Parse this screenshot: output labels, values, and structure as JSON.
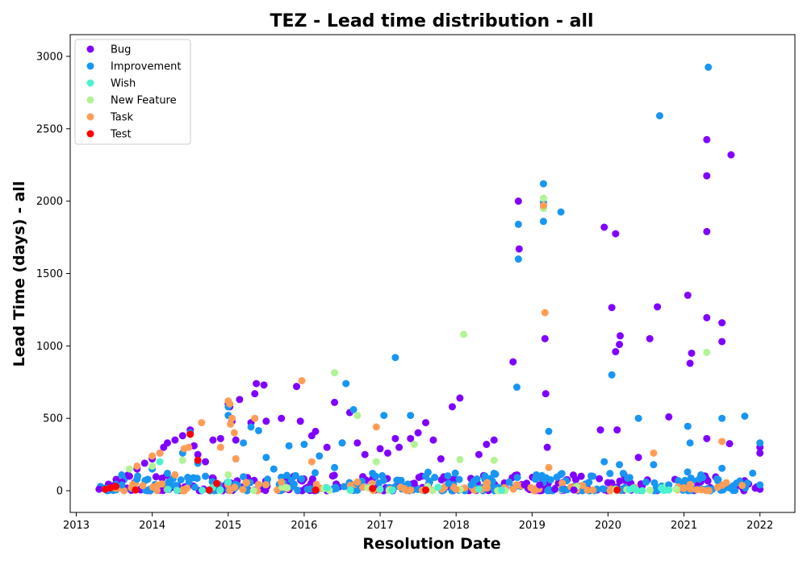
{
  "chart_data": {
    "type": "scatter",
    "title": "TEZ - Lead time distribution - all",
    "xlabel": "Resolution Date",
    "ylabel": "Lead Time (days) - all",
    "xlim": [
      2012.92,
      2022.46
    ],
    "ylim": [
      -150,
      3150
    ],
    "x_ticks": [
      2013,
      2014,
      2015,
      2016,
      2017,
      2018,
      2019,
      2020,
      2021,
      2022
    ],
    "y_ticks": [
      0,
      500,
      1000,
      1500,
      2000,
      2500,
      3000
    ],
    "legend_position": "top-left",
    "grid": false,
    "series": [
      {
        "name": "Bug",
        "color": "#8000ff",
        "points": [
          [
            2013.3,
            10
          ],
          [
            2013.5,
            30
          ],
          [
            2013.6,
            60
          ],
          [
            2013.7,
            100
          ],
          [
            2013.8,
            150
          ],
          [
            2013.9,
            190
          ],
          [
            2014.0,
            220
          ],
          [
            2014.1,
            260
          ],
          [
            2014.15,
            300
          ],
          [
            2014.2,
            330
          ],
          [
            2014.3,
            350
          ],
          [
            2014.4,
            380
          ],
          [
            2014.5,
            420
          ],
          [
            2014.55,
            310
          ],
          [
            2014.6,
            250
          ],
          [
            2014.7,
            200
          ],
          [
            2014.8,
            350
          ],
          [
            2014.9,
            360
          ],
          [
            2015.0,
            600
          ],
          [
            2015.02,
            580
          ],
          [
            2015.05,
            480
          ],
          [
            2015.1,
            350
          ],
          [
            2015.15,
            630
          ],
          [
            2015.3,
            470
          ],
          [
            2015.35,
            670
          ],
          [
            2015.37,
            740
          ],
          [
            2015.47,
            730
          ],
          [
            2015.5,
            480
          ],
          [
            2015.7,
            500
          ],
          [
            2015.9,
            720
          ],
          [
            2015.95,
            480
          ],
          [
            2016.1,
            380
          ],
          [
            2016.15,
            410
          ],
          [
            2016.3,
            300
          ],
          [
            2016.4,
            610
          ],
          [
            2016.5,
            330
          ],
          [
            2016.6,
            540
          ],
          [
            2016.7,
            330
          ],
          [
            2016.8,
            250
          ],
          [
            2017.0,
            290
          ],
          [
            2017.1,
            260
          ],
          [
            2017.2,
            360
          ],
          [
            2017.25,
            300
          ],
          [
            2017.4,
            360
          ],
          [
            2017.5,
            400
          ],
          [
            2017.6,
            470
          ],
          [
            2017.7,
            350
          ],
          [
            2017.8,
            220
          ],
          [
            2017.95,
            580
          ],
          [
            2018.05,
            640
          ],
          [
            2018.3,
            250
          ],
          [
            2018.4,
            320
          ],
          [
            2018.5,
            350
          ],
          [
            2018.75,
            890
          ],
          [
            2018.82,
            2000
          ],
          [
            2018.83,
            1670
          ],
          [
            2018.9,
            40
          ],
          [
            2019.1,
            40
          ],
          [
            2019.17,
            1050
          ],
          [
            2019.18,
            670
          ],
          [
            2019.2,
            300
          ],
          [
            2019.3,
            10
          ],
          [
            2019.55,
            5
          ],
          [
            2019.9,
            420
          ],
          [
            2019.95,
            1820
          ],
          [
            2020.05,
            1265
          ],
          [
            2020.1,
            1775
          ],
          [
            2020.1,
            960
          ],
          [
            2020.12,
            420
          ],
          [
            2020.15,
            1010
          ],
          [
            2020.16,
            1070
          ],
          [
            2020.4,
            230
          ],
          [
            2020.55,
            1050
          ],
          [
            2020.65,
            1270
          ],
          [
            2020.8,
            510
          ],
          [
            2021.05,
            1350
          ],
          [
            2021.08,
            880
          ],
          [
            2021.1,
            950
          ],
          [
            2021.3,
            2425
          ],
          [
            2021.3,
            2175
          ],
          [
            2021.3,
            1790
          ],
          [
            2021.3,
            1195
          ],
          [
            2021.3,
            360
          ],
          [
            2021.5,
            1160
          ],
          [
            2021.5,
            1030
          ],
          [
            2021.6,
            325
          ],
          [
            2021.62,
            2320
          ],
          [
            2022.0,
            300
          ],
          [
            2022.0,
            260
          ],
          [
            2022.0,
            10
          ]
        ]
      },
      {
        "name": "Improvement",
        "color": "#1996f3",
        "points": [
          [
            2013.4,
            15
          ],
          [
            2013.6,
            40
          ],
          [
            2013.8,
            80
          ],
          [
            2014.0,
            150
          ],
          [
            2014.2,
            120
          ],
          [
            2014.4,
            260
          ],
          [
            2014.5,
            400
          ],
          [
            2014.6,
            190
          ],
          [
            2014.7,
            100
          ],
          [
            2015.0,
            580
          ],
          [
            2015.0,
            520
          ],
          [
            2015.1,
            220
          ],
          [
            2015.2,
            330
          ],
          [
            2015.3,
            440
          ],
          [
            2015.4,
            415
          ],
          [
            2015.5,
            230
          ],
          [
            2015.6,
            150
          ],
          [
            2015.8,
            310
          ],
          [
            2016.0,
            320
          ],
          [
            2016.2,
            240
          ],
          [
            2016.4,
            160
          ],
          [
            2016.5,
            330
          ],
          [
            2016.55,
            740
          ],
          [
            2016.65,
            560
          ],
          [
            2016.7,
            50
          ],
          [
            2016.9,
            120
          ],
          [
            2017.05,
            520
          ],
          [
            2017.2,
            920
          ],
          [
            2017.4,
            520
          ],
          [
            2017.6,
            100
          ],
          [
            2017.9,
            50
          ],
          [
            2018.2,
            40
          ],
          [
            2018.5,
            120
          ],
          [
            2018.7,
            60
          ],
          [
            2018.8,
            715
          ],
          [
            2018.82,
            1840
          ],
          [
            2018.82,
            1600
          ],
          [
            2019.15,
            2120
          ],
          [
            2019.15,
            1990
          ],
          [
            2019.15,
            1860
          ],
          [
            2019.15,
            1960
          ],
          [
            2019.22,
            410
          ],
          [
            2019.38,
            1925
          ],
          [
            2019.4,
            10
          ],
          [
            2019.8,
            100
          ],
          [
            2019.95,
            200
          ],
          [
            2020.05,
            800
          ],
          [
            2020.15,
            180
          ],
          [
            2020.2,
            120
          ],
          [
            2020.4,
            500
          ],
          [
            2020.5,
            60
          ],
          [
            2020.6,
            180
          ],
          [
            2020.68,
            2590
          ],
          [
            2020.8,
            40
          ],
          [
            2021.05,
            445
          ],
          [
            2021.08,
            330
          ],
          [
            2021.2,
            80
          ],
          [
            2021.32,
            2925
          ],
          [
            2021.5,
            500
          ],
          [
            2021.5,
            155
          ],
          [
            2021.8,
            515
          ],
          [
            2022.0,
            330
          ],
          [
            2022.0,
            40
          ]
        ]
      },
      {
        "name": "Wish",
        "color": "#4cf2ce",
        "points": [
          [
            2014.1,
            200
          ],
          [
            2015.0,
            60
          ],
          [
            2016.3,
            20
          ],
          [
            2017.0,
            10
          ],
          [
            2018.3,
            10
          ],
          [
            2020.8,
            5
          ],
          [
            2020.9,
            10
          ]
        ]
      },
      {
        "name": "New Feature",
        "color": "#b2f396",
        "points": [
          [
            2013.7,
            150
          ],
          [
            2014.0,
            170
          ],
          [
            2014.4,
            210
          ],
          [
            2015.0,
            110
          ],
          [
            2016.4,
            815
          ],
          [
            2016.7,
            520
          ],
          [
            2016.95,
            200
          ],
          [
            2017.45,
            320
          ],
          [
            2018.05,
            215
          ],
          [
            2018.1,
            1080
          ],
          [
            2018.5,
            210
          ],
          [
            2019.15,
            2020
          ],
          [
            2019.15,
            1950
          ],
          [
            2020.9,
            10
          ],
          [
            2021.3,
            955
          ]
        ]
      },
      {
        "name": "Task",
        "color": "#ff9d57",
        "points": [
          [
            2013.5,
            20
          ],
          [
            2013.8,
            170
          ],
          [
            2014.0,
            240
          ],
          [
            2014.1,
            260
          ],
          [
            2014.3,
            110
          ],
          [
            2014.42,
            290
          ],
          [
            2014.48,
            300
          ],
          [
            2014.65,
            470
          ],
          [
            2014.9,
            300
          ],
          [
            2015.0,
            620
          ],
          [
            2015.02,
            600
          ],
          [
            2015.03,
            460
          ],
          [
            2015.05,
            500
          ],
          [
            2015.08,
            400
          ],
          [
            2015.1,
            220
          ],
          [
            2015.35,
            500
          ],
          [
            2015.7,
            60
          ],
          [
            2015.97,
            760
          ],
          [
            2016.1,
            200
          ],
          [
            2016.7,
            60
          ],
          [
            2016.95,
            440
          ],
          [
            2017.4,
            5
          ],
          [
            2018.0,
            10
          ],
          [
            2018.8,
            40
          ],
          [
            2019.15,
            1970
          ],
          [
            2019.17,
            1230
          ],
          [
            2019.22,
            160
          ],
          [
            2019.8,
            5
          ],
          [
            2020.6,
            260
          ],
          [
            2021.5,
            340
          ]
        ]
      },
      {
        "name": "Test",
        "color": "#ff0000",
        "points": [
          [
            2013.38,
            10
          ],
          [
            2013.45,
            20
          ],
          [
            2013.52,
            30
          ],
          [
            2013.78,
            5
          ],
          [
            2014.5,
            390
          ],
          [
            2014.6,
            210
          ],
          [
            2014.75,
            5
          ],
          [
            2014.85,
            50
          ],
          [
            2016.15,
            5
          ],
          [
            2016.9,
            15
          ],
          [
            2017.6,
            5
          ],
          [
            2020.12,
            5
          ]
        ]
      }
    ],
    "clusters": [
      {
        "series": 0,
        "x": [
          2013.3,
          2022.0
        ],
        "y": [
          0,
          110
        ],
        "n": 220
      },
      {
        "series": 1,
        "x": [
          2013.3,
          2022.0
        ],
        "y": [
          0,
          130
        ],
        "n": 220
      },
      {
        "series": 4,
        "x": [
          2013.5,
          2021.8
        ],
        "y": [
          0,
          60
        ],
        "n": 90
      },
      {
        "series": 3,
        "x": [
          2013.6,
          2021.0
        ],
        "y": [
          0,
          40
        ],
        "n": 25
      },
      {
        "series": 2,
        "x": [
          2013.6,
          2021.0
        ],
        "y": [
          0,
          30
        ],
        "n": 15
      }
    ]
  }
}
